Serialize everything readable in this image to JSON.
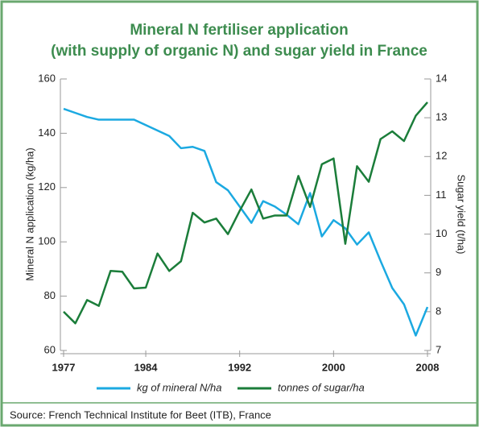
{
  "chart_data": {
    "type": "line",
    "title": [
      "Mineral N fertiliser application",
      "(with supply of organic N) and sugar yield in France"
    ],
    "ylabel": "Mineral N application (kg/ha)",
    "y2label": "Sugar yield (t/ha)",
    "source": "Source: French Technical Institute for Beet (ITB), France",
    "x": [
      1977,
      1978,
      1979,
      1980,
      1981,
      1982,
      1983,
      1984,
      1985,
      1986,
      1987,
      1988,
      1989,
      1990,
      1991,
      1992,
      1993,
      1994,
      1995,
      1996,
      1997,
      1998,
      1999,
      2000,
      2001,
      2002,
      2003,
      2004,
      2005,
      2006,
      2007,
      2008
    ],
    "xlim": [
      1977,
      2008
    ],
    "xticks": [
      1977,
      1984,
      1992,
      2000,
      2008
    ],
    "ylim": [
      60,
      160
    ],
    "yticks": [
      60,
      80,
      100,
      120,
      140,
      160
    ],
    "y2lim": [
      7,
      14
    ],
    "y2ticks": [
      7,
      8,
      9,
      10,
      11,
      12,
      13,
      14
    ],
    "series": [
      {
        "name": "kg of mineral N/ha",
        "color": "#1ba9e1",
        "values": [
          149,
          147.5,
          146,
          145,
          145,
          145,
          145,
          143,
          141,
          139,
          134.5,
          135,
          133.5,
          122,
          119,
          113,
          107,
          115,
          113,
          110,
          106.5,
          118,
          102,
          108,
          105,
          99,
          103.5,
          93,
          83,
          77,
          65.5,
          76
        ]
      },
      {
        "name": "tonnes of sugar/ha",
        "color": "#1b7d3a",
        "axis": "y2",
        "values": [
          8.0,
          7.7,
          8.3,
          8.15,
          9.05,
          9.03,
          8.6,
          8.62,
          9.5,
          9.05,
          9.3,
          10.55,
          10.3,
          10.4,
          10.0,
          10.6,
          11.15,
          10.4,
          10.48,
          10.48,
          11.5,
          10.7,
          11.8,
          11.95,
          9.75,
          11.75,
          11.35,
          12.45,
          12.65,
          12.4,
          13.05,
          13.4
        ]
      }
    ]
  }
}
